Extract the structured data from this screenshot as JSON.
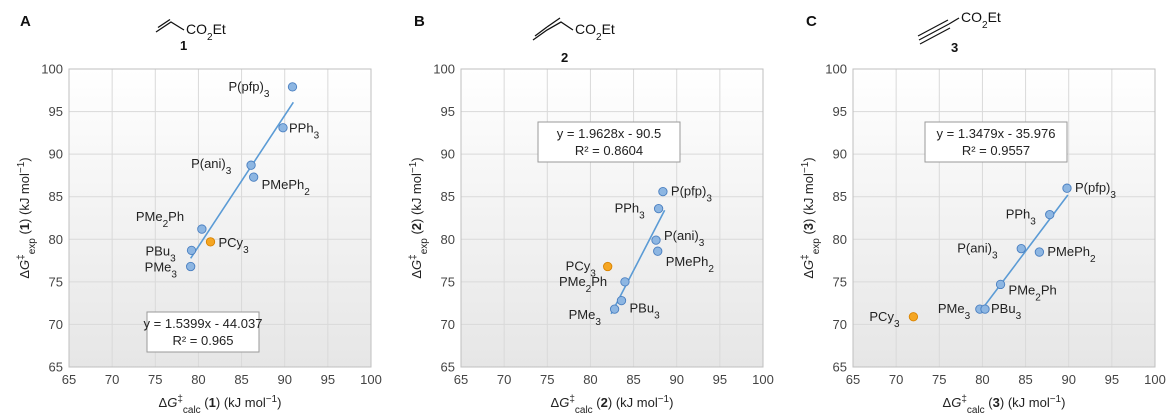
{
  "colors": {
    "phosphine_point": "#8db6e2",
    "phosphine_edge": "#4a7fc0",
    "pcy3_point": "#f5a623",
    "pcy3_edge": "#d98300",
    "fit_line": "#5b9bd5",
    "grid": "#d9d9d9",
    "plot_gradient_top": "#ffffff",
    "plot_gradient_bottom": "#e6e6e6"
  },
  "chart_data": [
    {
      "type": "scatter",
      "panel": "A",
      "compound": "1",
      "substituent": "CO2Et",
      "xlabel": "ΔG‡calc (1) (kJ mol−1)",
      "ylabel": "ΔG‡exp (1) (kJ mol−1)",
      "xlim": [
        65,
        100
      ],
      "ylim": [
        65,
        100
      ],
      "xticks": [
        "65",
        "70",
        "75",
        "80",
        "85",
        "90",
        "95",
        "100"
      ],
      "yticks": [
        "65",
        "70",
        "75",
        "80",
        "85",
        "90",
        "95",
        "100"
      ],
      "grid": true,
      "equation": "y = 1.5399x - 44.037",
      "r2": "R² = 0.965",
      "fit": {
        "slope": 1.5399,
        "intercept": -44.037,
        "x_range": [
          79.1,
          91.0
        ]
      },
      "points": [
        {
          "label": "P(pfp)3",
          "x": 90.9,
          "y": 97.9,
          "pcy3": false
        },
        {
          "label": "PPh3",
          "x": 89.8,
          "y": 93.1,
          "pcy3": false
        },
        {
          "label": "P(ani)3",
          "x": 86.1,
          "y": 88.7,
          "pcy3": false
        },
        {
          "label": "PMePh2",
          "x": 86.4,
          "y": 87.3,
          "pcy3": false
        },
        {
          "label": "PMe2Ph",
          "x": 80.4,
          "y": 81.2,
          "pcy3": false
        },
        {
          "label": "PBu3",
          "x": 79.2,
          "y": 78.7,
          "pcy3": false
        },
        {
          "label": "PCy3",
          "x": 81.4,
          "y": 79.7,
          "pcy3": true
        },
        {
          "label": "PMe3",
          "x": 79.1,
          "y": 76.8,
          "pcy3": false
        }
      ]
    },
    {
      "type": "scatter",
      "panel": "B",
      "compound": "2",
      "substituent": "CO2Et",
      "xlabel": "ΔG‡calc (2) (kJ mol−1)",
      "ylabel": "ΔG‡exp (2) (kJ mol−1)",
      "xlim": [
        65,
        100
      ],
      "ylim": [
        65,
        100
      ],
      "xticks": [
        "65",
        "70",
        "75",
        "80",
        "85",
        "90",
        "95",
        "100"
      ],
      "yticks": [
        "65",
        "70",
        "75",
        "80",
        "85",
        "90",
        "95",
        "100"
      ],
      "grid": true,
      "equation": "y = 1.9628x - 90.5",
      "r2": "R² = 0.8604",
      "fit": {
        "slope": 1.9628,
        "intercept": -90.5,
        "x_range": [
          82.4,
          88.6
        ]
      },
      "points": [
        {
          "label": "P(pfp)3",
          "x": 88.4,
          "y": 85.6,
          "pcy3": false
        },
        {
          "label": "PPh3",
          "x": 87.9,
          "y": 83.6,
          "pcy3": false
        },
        {
          "label": "P(ani)3",
          "x": 87.6,
          "y": 79.9,
          "pcy3": false
        },
        {
          "label": "PMePh2",
          "x": 87.8,
          "y": 78.6,
          "pcy3": false
        },
        {
          "label": "PCy3",
          "x": 82.0,
          "y": 76.8,
          "pcy3": true
        },
        {
          "label": "PMe2Ph",
          "x": 84.0,
          "y": 75.0,
          "pcy3": false
        },
        {
          "label": "PBu3",
          "x": 83.6,
          "y": 72.8,
          "pcy3": false
        },
        {
          "label": "PMe3",
          "x": 82.8,
          "y": 71.8,
          "pcy3": false
        }
      ]
    },
    {
      "type": "scatter",
      "panel": "C",
      "compound": "3",
      "substituent": "CO2Et",
      "xlabel": "ΔG‡calc (3) (kJ mol−1)",
      "ylabel": "ΔG‡exp (3) (kJ mol−1)",
      "xlim": [
        65,
        100
      ],
      "ylim": [
        65,
        100
      ],
      "xticks": [
        "65",
        "70",
        "75",
        "80",
        "85",
        "90",
        "95",
        "100"
      ],
      "yticks": [
        "65",
        "70",
        "75",
        "80",
        "85",
        "90",
        "95",
        "100"
      ],
      "grid": true,
      "equation": "y = 1.3479x - 35.976",
      "r2": "R² = 0.9557",
      "fit": {
        "slope": 1.3479,
        "intercept": -35.976,
        "x_range": [
          79.6,
          89.9
        ]
      },
      "points": [
        {
          "label": "P(pfp)3",
          "x": 89.8,
          "y": 86.0,
          "pcy3": false
        },
        {
          "label": "PPh3",
          "x": 87.8,
          "y": 82.9,
          "pcy3": false
        },
        {
          "label": "P(ani)3",
          "x": 84.5,
          "y": 78.9,
          "pcy3": false
        },
        {
          "label": "PMePh2",
          "x": 86.6,
          "y": 78.5,
          "pcy3": false
        },
        {
          "label": "PMe2Ph",
          "x": 82.1,
          "y": 74.7,
          "pcy3": false
        },
        {
          "label": "PMe3",
          "x": 79.7,
          "y": 71.8,
          "pcy3": false
        },
        {
          "label": "PBu3",
          "x": 80.3,
          "y": 71.8,
          "pcy3": false
        },
        {
          "label": "PCy3",
          "x": 72.0,
          "y": 70.9,
          "pcy3": true
        }
      ]
    }
  ]
}
